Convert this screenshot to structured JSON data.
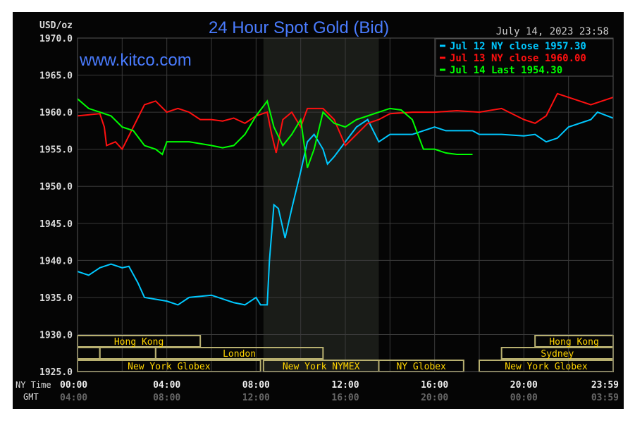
{
  "chart_data": {
    "type": "line",
    "title": "24 Hour Spot Gold (Bid)",
    "watermark": "www.kitco.com",
    "date_label": "July 14, 2023 23:58",
    "ylabel": "USD/oz",
    "ylim": [
      1925,
      1970
    ],
    "yticks": [
      "1970.0",
      "1965.0",
      "1960.0",
      "1955.0",
      "1950.0",
      "1945.0",
      "1940.0",
      "1935.0",
      "1930.0",
      "1925.0"
    ],
    "ytick_values": [
      1970,
      1965,
      1960,
      1955,
      1950,
      1945,
      1940,
      1935,
      1930,
      1925
    ],
    "xlim_hours": [
      0,
      24
    ],
    "x_row_labels": {
      "ny": "NY Time",
      "gmt": "GMT"
    },
    "xticks_ny": [
      "00:00",
      "04:00",
      "08:00",
      "12:00",
      "16:00",
      "20:00",
      "23:59"
    ],
    "xticks_gmt": [
      "04:00",
      "08:00",
      "12:00",
      "16:00",
      "20:00",
      "00:00",
      "03:59"
    ],
    "xtick_hours": [
      0,
      4,
      8,
      12,
      16,
      20,
      24
    ],
    "grid": true,
    "nymex_shaded_hours": [
      8.33,
      13.5
    ],
    "legend_placement": "top-right",
    "series": [
      {
        "name": "Jul 12 NY close 1957.30",
        "color": "#00c8ff",
        "points": [
          [
            0,
            1938.5
          ],
          [
            0.5,
            1938
          ],
          [
            1,
            1939
          ],
          [
            1.5,
            1939.5
          ],
          [
            2,
            1939
          ],
          [
            2.3,
            1939.2
          ],
          [
            2.7,
            1937
          ],
          [
            3,
            1935
          ],
          [
            4,
            1934.5
          ],
          [
            4.5,
            1934
          ],
          [
            5,
            1935
          ],
          [
            6,
            1935.3
          ],
          [
            7,
            1934.3
          ],
          [
            7.5,
            1934
          ],
          [
            8,
            1935
          ],
          [
            8.2,
            1934
          ],
          [
            8.5,
            1934
          ],
          [
            8.6,
            1940
          ],
          [
            8.8,
            1947.5
          ],
          [
            9,
            1947
          ],
          [
            9.3,
            1943
          ],
          [
            9.6,
            1947
          ],
          [
            10,
            1952
          ],
          [
            10.3,
            1956
          ],
          [
            10.6,
            1957
          ],
          [
            11,
            1955
          ],
          [
            11.2,
            1953
          ],
          [
            11.5,
            1954
          ],
          [
            12,
            1956
          ],
          [
            12.5,
            1958
          ],
          [
            13,
            1959
          ],
          [
            13.5,
            1956
          ],
          [
            14,
            1957
          ],
          [
            15,
            1957
          ],
          [
            16,
            1958
          ],
          [
            16.5,
            1957.5
          ],
          [
            17.7,
            1957.5
          ],
          [
            18,
            1957
          ],
          [
            19,
            1957
          ],
          [
            20,
            1956.8
          ],
          [
            20.5,
            1957
          ],
          [
            21,
            1956
          ],
          [
            21.5,
            1956.5
          ],
          [
            22,
            1958
          ],
          [
            23,
            1959
          ],
          [
            23.3,
            1960
          ],
          [
            24,
            1959.2
          ]
        ]
      },
      {
        "name": "Jul 13 NY close 1960.00",
        "color": "#ff1010",
        "points": [
          [
            0,
            1959.5
          ],
          [
            1,
            1959.8
          ],
          [
            1.2,
            1958
          ],
          [
            1.3,
            1955.5
          ],
          [
            1.7,
            1956
          ],
          [
            2,
            1955
          ],
          [
            2.5,
            1958
          ],
          [
            3,
            1961
          ],
          [
            3.5,
            1961.5
          ],
          [
            4,
            1960
          ],
          [
            4.5,
            1960.5
          ],
          [
            5,
            1960
          ],
          [
            5.5,
            1959
          ],
          [
            6,
            1959
          ],
          [
            6.5,
            1958.8
          ],
          [
            7,
            1959.2
          ],
          [
            7.5,
            1958.5
          ],
          [
            8,
            1959.5
          ],
          [
            8.5,
            1960
          ],
          [
            8.7,
            1957
          ],
          [
            8.9,
            1954.5
          ],
          [
            9.2,
            1959
          ],
          [
            9.6,
            1960
          ],
          [
            10,
            1958
          ],
          [
            10.3,
            1960.5
          ],
          [
            11,
            1960.5
          ],
          [
            11.5,
            1959
          ],
          [
            12,
            1955.5
          ],
          [
            12.5,
            1957
          ],
          [
            13,
            1958.5
          ],
          [
            13.5,
            1959
          ],
          [
            14,
            1959.8
          ],
          [
            15,
            1960
          ],
          [
            16,
            1960
          ],
          [
            17,
            1960.2
          ],
          [
            18,
            1960
          ],
          [
            19,
            1960.5
          ],
          [
            20,
            1959
          ],
          [
            20.5,
            1958.5
          ],
          [
            21,
            1959.5
          ],
          [
            21.5,
            1962.5
          ],
          [
            22,
            1962
          ],
          [
            23,
            1961
          ],
          [
            24,
            1962
          ]
        ]
      },
      {
        "name": "Jul 14 Last 1954.30",
        "color": "#00ff00",
        "points": [
          [
            0,
            1961.8
          ],
          [
            0.5,
            1960.5
          ],
          [
            1,
            1960
          ],
          [
            1.5,
            1959.5
          ],
          [
            2,
            1958
          ],
          [
            2.5,
            1957.5
          ],
          [
            3,
            1955.5
          ],
          [
            3.5,
            1955
          ],
          [
            3.8,
            1954.3
          ],
          [
            4,
            1956
          ],
          [
            5,
            1956
          ],
          [
            6,
            1955.5
          ],
          [
            6.5,
            1955.2
          ],
          [
            7,
            1955.5
          ],
          [
            7.5,
            1957
          ],
          [
            8,
            1959.5
          ],
          [
            8.5,
            1961.5
          ],
          [
            8.8,
            1958
          ],
          [
            9.2,
            1955.5
          ],
          [
            9.6,
            1957
          ],
          [
            10,
            1959
          ],
          [
            10.3,
            1952.5
          ],
          [
            10.6,
            1955
          ],
          [
            11,
            1960
          ],
          [
            11.5,
            1958.5
          ],
          [
            12,
            1958
          ],
          [
            12.5,
            1959
          ],
          [
            13,
            1959.5
          ],
          [
            13.5,
            1960
          ],
          [
            14,
            1960.5
          ],
          [
            14.5,
            1960.3
          ],
          [
            15,
            1959
          ],
          [
            15.5,
            1955
          ],
          [
            16,
            1955
          ],
          [
            16.5,
            1954.5
          ],
          [
            17,
            1954.3
          ],
          [
            17.7,
            1954.3
          ]
        ]
      }
    ],
    "sessions": [
      {
        "label": "Hong Kong",
        "row": 0,
        "hours": [
          0,
          5.5
        ]
      },
      {
        "label": "Hong Kong",
        "row": 0,
        "hours": [
          20.5,
          24
        ]
      },
      {
        "label": "",
        "row": 1,
        "hours": [
          0,
          1
        ]
      },
      {
        "label": "",
        "row": 1,
        "hours": [
          1,
          3.5
        ]
      },
      {
        "label": "London",
        "row": 1,
        "hours": [
          3.5,
          11
        ]
      },
      {
        "label": "Sydney",
        "row": 1,
        "hours": [
          19,
          24
        ]
      },
      {
        "label": "New York Globex",
        "row": 2,
        "hours": [
          0,
          8.2
        ]
      },
      {
        "label": "New York NYMEX",
        "row": 2,
        "hours": [
          8.33,
          13.5
        ]
      },
      {
        "label": "NY Globex",
        "row": 2,
        "hours": [
          13.5,
          17.3
        ]
      },
      {
        "label": "New York Globex",
        "row": 2,
        "hours": [
          18,
          24
        ]
      }
    ]
  }
}
